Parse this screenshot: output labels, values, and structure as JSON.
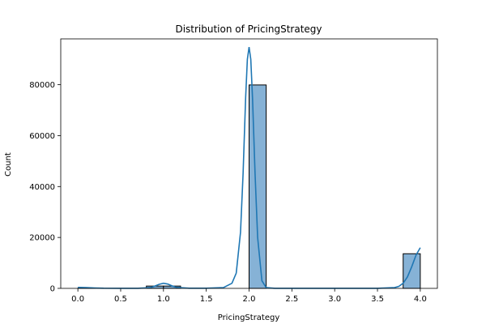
{
  "chart_data": {
    "type": "bar",
    "title": "Distribution of PricingStrategy",
    "xlabel": "PricingStrategy",
    "ylabel": "Count",
    "xlim": [
      -0.2,
      4.2
    ],
    "ylim": [
      0,
      98000
    ],
    "xticks": [
      "0.0",
      "0.5",
      "1.0",
      "1.5",
      "2.0",
      "2.5",
      "3.0",
      "3.5",
      "4.0"
    ],
    "yticks": [
      "0",
      "20000",
      "40000",
      "60000",
      "80000"
    ],
    "bins": [
      {
        "x0": 0.0,
        "x1": 0.2,
        "count": 40
      },
      {
        "x0": 0.8,
        "x1": 1.0,
        "count": 900
      },
      {
        "x0": 1.0,
        "x1": 1.2,
        "count": 900
      },
      {
        "x0": 2.0,
        "x1": 2.2,
        "count": 79900
      },
      {
        "x0": 3.8,
        "x1": 4.0,
        "count": 13600
      }
    ],
    "kde": {
      "x": [
        0.0,
        0.1,
        0.2,
        0.3,
        0.5,
        0.7,
        0.85,
        0.9,
        0.95,
        1.0,
        1.05,
        1.1,
        1.15,
        1.3,
        1.5,
        1.7,
        1.8,
        1.85,
        1.9,
        1.93,
        1.96,
        1.98,
        2.0,
        2.02,
        2.04,
        2.07,
        2.1,
        2.15,
        2.2,
        2.3,
        2.5,
        3.0,
        3.5,
        3.7,
        3.75,
        3.8,
        3.85,
        3.9,
        3.95,
        4.0
      ],
      "y": [
        400,
        300,
        150,
        50,
        10,
        30,
        300,
        900,
        1600,
        2000,
        1700,
        1000,
        400,
        50,
        50,
        300,
        2000,
        6000,
        22000,
        45000,
        75000,
        90000,
        94800,
        90000,
        75000,
        45000,
        20000,
        3000,
        300,
        30,
        10,
        10,
        30,
        300,
        800,
        2000,
        4500,
        8500,
        13000,
        16000
      ]
    },
    "bar_color": "#86b2d6",
    "line_color": "#1f77b4",
    "grid": false,
    "legend": false
  }
}
